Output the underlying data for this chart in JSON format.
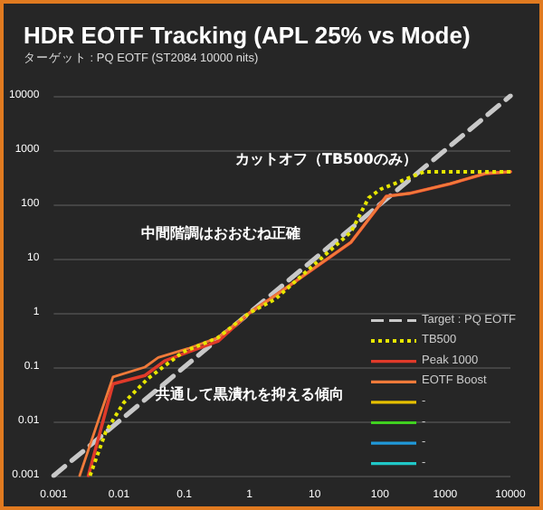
{
  "chart_data": {
    "type": "line",
    "title": "HDR EOTF Tracking (APL 25% vs Mode)",
    "subtitle": "ターゲット : PQ EOTF (ST2084 10000 nits)",
    "log": "xy",
    "xlim": [
      0.001,
      10000
    ],
    "ylim": [
      0.001,
      10000
    ],
    "xticks": [
      0.001,
      0.01,
      0.1,
      1,
      10,
      100,
      1000,
      10000
    ],
    "yticks": [
      0.001,
      0.01,
      0.1,
      1,
      10,
      100,
      1000,
      10000
    ],
    "grid": "y",
    "legend": "bottom right",
    "marker": "none",
    "annotations": [
      "カットオフ（TB500のみ）",
      "中間階調はおおむね正確",
      "共通して黒潰れを抑える傾向"
    ],
    "series": [
      {
        "name": "Target : PQ EOTF",
        "color": "#c8c8c8",
        "line_style": "dashed",
        "x": [
          0.001,
          10000
        ],
        "values": [
          0.001,
          10000
        ]
      },
      {
        "name": "TB500",
        "color": "#e6e600",
        "line_style": "dotted",
        "x": [
          0.0036,
          0.0063,
          0.0118,
          0.028,
          0.096,
          0.33,
          1,
          2.5,
          36,
          67,
          102,
          480,
          10000
        ],
        "values": [
          0.001,
          0.0065,
          0.022,
          0.062,
          0.19,
          0.35,
          1,
          1.8,
          31,
          131,
          190,
          400,
          400
        ]
      },
      {
        "name": "Peak 1000",
        "color": "#e03a2a",
        "line_style": "solid",
        "x": [
          0.0034,
          0.0081,
          0.025,
          0.05,
          0.115,
          0.33,
          1,
          2.5,
          36,
          125,
          290,
          1200,
          4100,
          10000
        ],
        "values": [
          0.001,
          0.049,
          0.07,
          0.13,
          0.19,
          0.3,
          1,
          2.1,
          20,
          141,
          160,
          240,
          370,
          400
        ]
      },
      {
        "name": "EOTF Boost",
        "color": "#f07a3a",
        "line_style": "solid",
        "x": [
          0.0025,
          0.0081,
          0.025,
          0.04,
          0.115,
          0.33,
          1,
          2.5,
          36,
          125,
          290,
          1200,
          4100,
          10000
        ],
        "values": [
          0.001,
          0.066,
          0.1,
          0.15,
          0.22,
          0.35,
          1,
          2.1,
          20,
          141,
          160,
          240,
          370,
          400
        ]
      },
      {
        "name": "-",
        "color": "#e6c000",
        "line_style": "solid"
      },
      {
        "name": "-",
        "color": "#40d020",
        "line_style": "solid"
      },
      {
        "name": "-",
        "color": "#2098d8",
        "line_style": "solid"
      },
      {
        "name": "-",
        "color": "#20c8c8",
        "line_style": "solid"
      }
    ]
  }
}
